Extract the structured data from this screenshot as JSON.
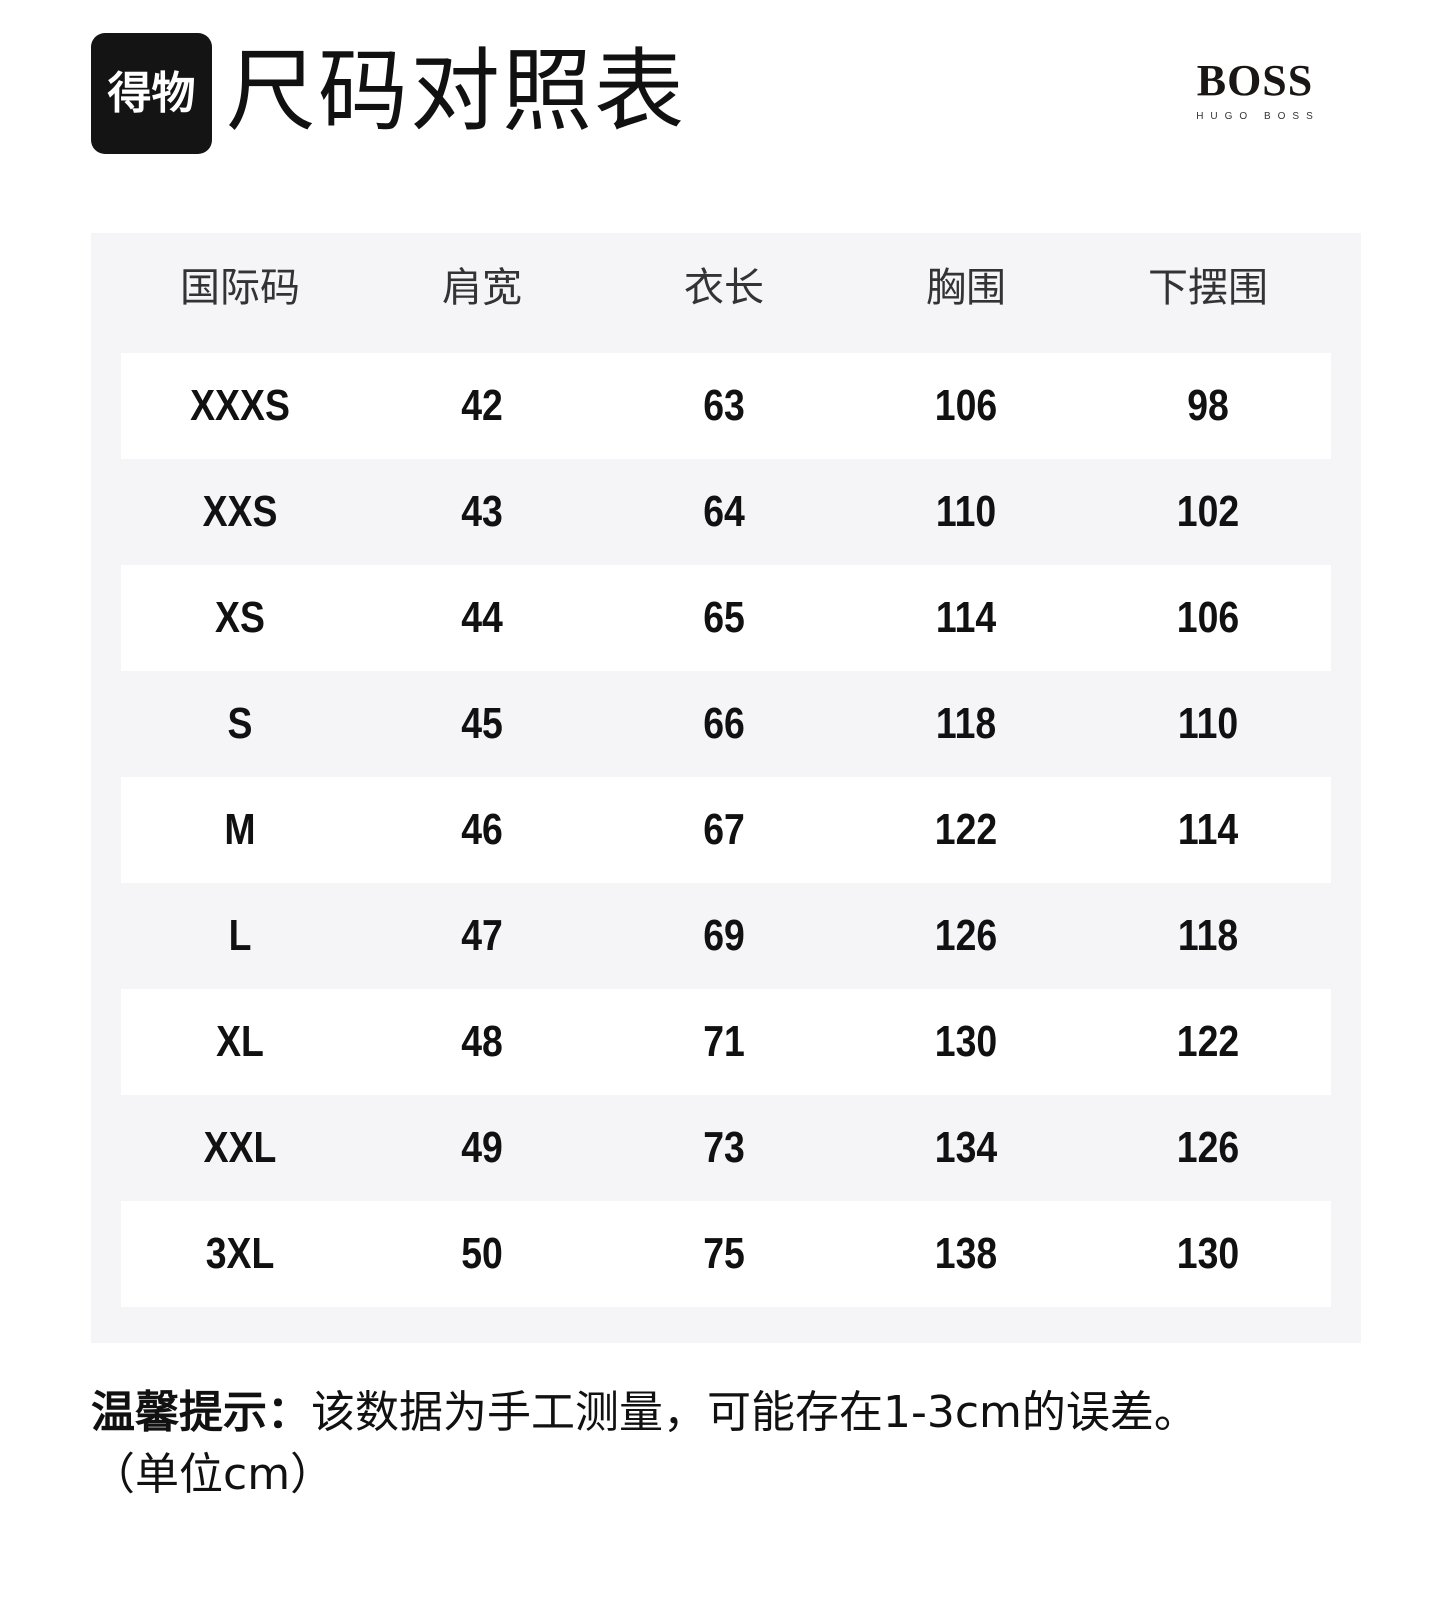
{
  "header": {
    "logo_text": "得物",
    "title": "尺码对照表",
    "brand_logo": {
      "main": "BOSS",
      "sub": "HUGO BOSS"
    }
  },
  "table": {
    "columns": [
      "国际码",
      "肩宽",
      "衣长",
      "胸围",
      "下摆围"
    ],
    "rows": [
      [
        "XXXS",
        "42",
        "63",
        "106",
        "98"
      ],
      [
        "XXS",
        "43",
        "64",
        "110",
        "102"
      ],
      [
        "XS",
        "44",
        "65",
        "114",
        "106"
      ],
      [
        "S",
        "45",
        "66",
        "118",
        "110"
      ],
      [
        "M",
        "46",
        "67",
        "122",
        "114"
      ],
      [
        "L",
        "47",
        "69",
        "126",
        "118"
      ],
      [
        "XL",
        "48",
        "71",
        "130",
        "122"
      ],
      [
        "XXL",
        "49",
        "73",
        "134",
        "126"
      ],
      [
        "3XL",
        "50",
        "75",
        "138",
        "130"
      ]
    ]
  },
  "note": {
    "label": "温馨提示：",
    "text": "该数据为手工测量，可能存在1-3cm的误差。",
    "unit": "（单位cm）"
  },
  "colors": {
    "panel": "#f5f5f8",
    "row_alt": "#ffffff",
    "logo_bg": "#141414"
  }
}
